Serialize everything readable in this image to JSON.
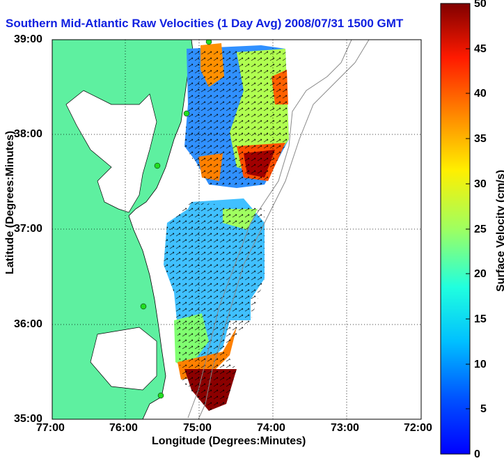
{
  "title": "Southern Mid-Atlantic Raw Velocities (1 Day Avg) 2008/07/31 1500 GMT",
  "xlabel": "Longitude (Degrees:Minutes)",
  "ylabel": "Latitude (Degrees:Minutes)",
  "colorbar_label": "Surface Velocity (cm/s)",
  "x_ticks": [
    "77:00",
    "76:00",
    "75:00",
    "74:00",
    "73:00",
    "72:00"
  ],
  "y_ticks": [
    "39:00",
    "38:00",
    "37:00",
    "36:00",
    "35:00"
  ],
  "colorbar_ticks": [
    "50",
    "45",
    "40",
    "35",
    "30",
    "25",
    "20",
    "15",
    "10",
    "5",
    "0"
  ],
  "colors": {
    "land": "#5ef0a0",
    "title": "#1020e0",
    "station": "#22dd22"
  }
}
